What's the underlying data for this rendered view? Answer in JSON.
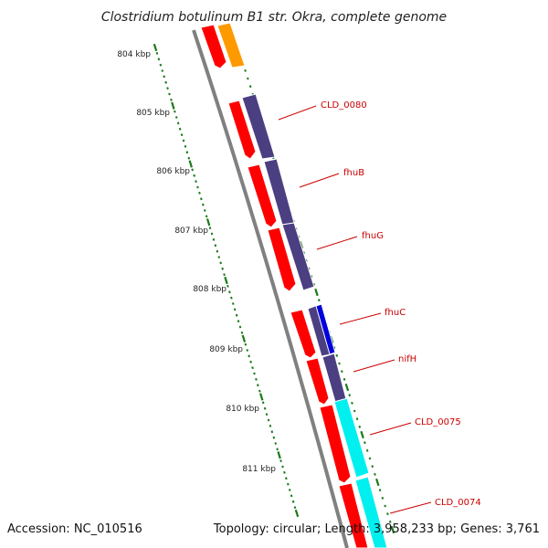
{
  "title": "Clostridium botulinum B1 str. Okra, complete genome",
  "scale_ticks": [
    {
      "label": "804 kbp"
    },
    {
      "label": "805 kbp"
    },
    {
      "label": "806 kbp"
    },
    {
      "label": "807 kbp"
    },
    {
      "label": "808 kbp"
    },
    {
      "label": "809 kbp"
    },
    {
      "label": "810 kbp"
    },
    {
      "label": "811 kbp"
    }
  ],
  "gene_labels": [
    {
      "label": "CLD_0080"
    },
    {
      "label": "fhuB"
    },
    {
      "label": "fhuG"
    },
    {
      "label": "fhuC"
    },
    {
      "label": "nifH"
    },
    {
      "label": "CLD_0075"
    },
    {
      "label": "CLD_0074"
    }
  ],
  "colors": {
    "backbone": "#808080",
    "ring_tick": "#1a7a1a",
    "cds": "#ff0000",
    "purple": "#4b3f82",
    "orange": "#ff9900",
    "blue": "#0000dd",
    "cyan": "#00f0f0",
    "label": "#cc0000"
  },
  "footer": {
    "accession": "Accession: NC_010516",
    "summary": "Topology: circular; Length: 3,958,233 bp; Genes: 3,761"
  }
}
